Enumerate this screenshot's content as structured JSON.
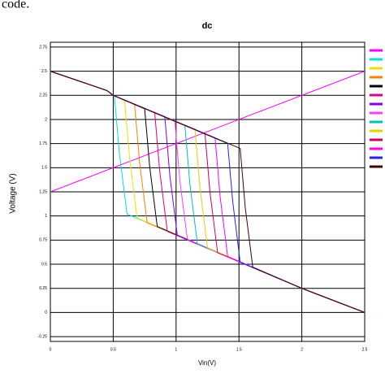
{
  "header": "code.",
  "chart_data": {
    "type": "line",
    "title": "dc",
    "x_label": "Vin(V)",
    "y_label": "Voltage (V)",
    "xlim": [
      0,
      2.5
    ],
    "xticks": [
      0,
      0.5,
      1,
      1.5,
      2,
      2.5
    ],
    "ylim": [
      -0.3,
      2.8
    ],
    "yticks": [
      -0.25,
      0,
      0.25,
      0.5,
      0.75,
      1,
      1.25,
      1.5,
      1.75,
      2,
      2.25,
      2.5,
      2.75
    ],
    "grid": true,
    "legend": "right",
    "series": [
      {
        "color": "#ff00ff",
        "x": [
          0,
          2.5
        ],
        "values": [
          1.25,
          2.5
        ]
      },
      {
        "color": "#00e0e0",
        "x": [
          0,
          0.45,
          0.5,
          0.51,
          0.55,
          0.61,
          2.0,
          2.5
        ],
        "values": [
          2.5,
          2.3,
          2.25,
          2.24,
          1.64,
          1.02,
          0.25,
          0
        ]
      },
      {
        "color": "#f0e000",
        "x": [
          0,
          0.45,
          0.5,
          0.59,
          0.63,
          0.69,
          2.0,
          2.5
        ],
        "values": [
          2.5,
          2.3,
          2.25,
          2.2,
          1.6,
          0.98,
          0.25,
          0
        ]
      },
      {
        "color": "#ff8000",
        "x": [
          0,
          0.45,
          0.5,
          0.67,
          0.71,
          0.77,
          2.0,
          2.5
        ],
        "values": [
          2.5,
          2.3,
          2.25,
          2.16,
          1.55,
          0.93,
          0.25,
          0
        ]
      },
      {
        "color": "#000000",
        "x": [
          0,
          0.45,
          0.5,
          0.75,
          0.79,
          0.85,
          2.0,
          2.5
        ],
        "values": [
          2.5,
          2.3,
          2.25,
          2.11,
          1.51,
          0.89,
          0.25,
          0
        ]
      },
      {
        "color": "#e00080",
        "x": [
          0,
          0.45,
          0.5,
          0.83,
          0.87,
          0.93,
          2.0,
          2.5
        ],
        "values": [
          2.5,
          2.3,
          2.25,
          2.07,
          1.46,
          0.84,
          0.25,
          0
        ]
      },
      {
        "color": "#8000ff",
        "x": [
          0,
          0.45,
          0.5,
          0.91,
          0.95,
          1.01,
          2.0,
          2.5
        ],
        "values": [
          2.5,
          2.3,
          2.25,
          2.03,
          1.42,
          0.8,
          0.25,
          0
        ]
      },
      {
        "color": "#ff40ff",
        "x": [
          0,
          0.45,
          0.5,
          0.99,
          1.03,
          1.09,
          2.0,
          2.5
        ],
        "values": [
          2.5,
          2.3,
          2.25,
          1.98,
          1.37,
          0.76,
          0.25,
          0
        ]
      },
      {
        "color": "#00c0c0",
        "x": [
          0,
          0.45,
          0.5,
          1.07,
          1.11,
          1.17,
          2.0,
          2.5
        ],
        "values": [
          2.5,
          2.3,
          2.25,
          1.94,
          1.33,
          0.71,
          0.25,
          0
        ]
      },
      {
        "color": "#e0d000",
        "x": [
          0,
          0.45,
          0.5,
          1.15,
          1.19,
          1.25,
          2.0,
          2.5
        ],
        "values": [
          2.5,
          2.3,
          2.25,
          1.9,
          1.29,
          0.67,
          0.25,
          0
        ]
      },
      {
        "color": "#d00060",
        "x": [
          0,
          0.45,
          0.5,
          1.23,
          1.27,
          1.33,
          2.0,
          2.5
        ],
        "values": [
          2.5,
          2.3,
          2.25,
          1.85,
          1.24,
          0.62,
          0.25,
          0
        ]
      },
      {
        "color": "#ff00ff",
        "x": [
          0,
          0.45,
          0.5,
          1.31,
          1.35,
          1.41,
          2.0,
          2.5
        ],
        "values": [
          2.5,
          2.3,
          2.25,
          1.81,
          1.2,
          0.58,
          0.25,
          0
        ]
      },
      {
        "color": "#2020ff",
        "x": [
          0,
          0.45,
          0.5,
          1.41,
          1.45,
          1.51,
          2.0,
          2.5
        ],
        "values": [
          2.5,
          2.3,
          2.25,
          1.75,
          1.15,
          0.52,
          0.25,
          0
        ]
      },
      {
        "color": "#400000",
        "x": [
          0,
          0.45,
          0.5,
          1.51,
          1.55,
          1.61,
          2.0,
          2.5
        ],
        "values": [
          2.5,
          2.3,
          2.25,
          1.7,
          1.09,
          0.47,
          0.25,
          0
        ]
      }
    ]
  }
}
